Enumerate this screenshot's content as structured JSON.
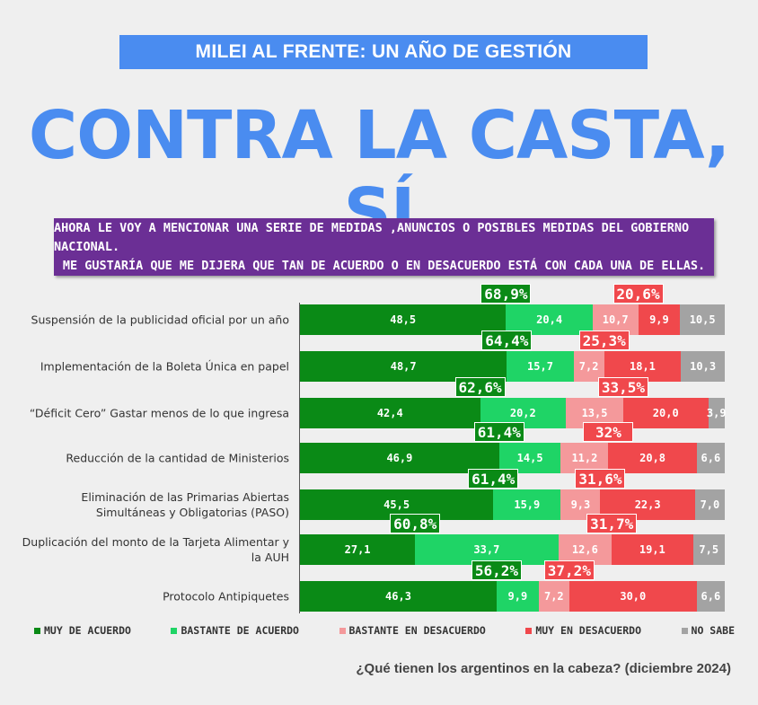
{
  "banner": "MILEI AL FRENTE: UN AÑO DE GESTIÓN",
  "title": "CONTRA LA CASTA, SÍ",
  "question": [
    "AHORA LE VOY A MENCIONAR UNA SERIE DE MEDIDAS ,ANUNCIOS  O POSIBLES MEDIDAS DEL GOBIERNO NACIONAL.",
    "ME GUSTARÍA QUE ME DIJERA QUE TAN DE ACUERDO O EN DESACUERDO ESTÁ CON CADA UNA DE ELLAS."
  ],
  "source": "¿Qué tienen los argentinos en la cabeza? (diciembre 2024)",
  "chart_data": {
    "type": "bar",
    "orientation": "horizontal",
    "stacked": true,
    "xlim": [
      0,
      100
    ],
    "legend": "bottom",
    "categories": [
      "Suspensión de la publicidad oficial por un año",
      "Implementación de la Boleta Única en papel",
      "“Déficit Cero” Gastar menos de lo que ingresa",
      "Reducción de la cantidad de Ministerios",
      "Eliminación de las Primarias Abiertas Simultáneas y Obligatorias (PASO)",
      "Duplicación del monto de la Tarjeta Alimentar y la AUH",
      "Protocolo Antipiquetes"
    ],
    "series": [
      {
        "name": "Muy de acuerdo",
        "color": "#0a8a16",
        "values": [
          "48,5",
          "48,7",
          "42,4",
          "46,9",
          "45,5",
          "27,1",
          "46,3"
        ]
      },
      {
        "name": "Bastante de acuerdo",
        "color": "#1fd466",
        "values": [
          "20,4",
          "15,7",
          "20,2",
          "14,5",
          "15,9",
          "33,7",
          "9,9"
        ]
      },
      {
        "name": "Bastante en desacuerdo",
        "color": "#f4999b",
        "values": [
          "10,7",
          "7,2",
          "13,5",
          "11,2",
          "9,3",
          "12,6",
          "7,2"
        ]
      },
      {
        "name": "Muy en desacuerdo",
        "color": "#f0484c",
        "values": [
          "9,9",
          "18,1",
          "20,0",
          "20,8",
          "22,3",
          "19,1",
          "30,0"
        ]
      },
      {
        "name": "No sabe",
        "color": "#a3a3a3",
        "values": [
          "10,5",
          "10,3",
          "3,9",
          "6,6",
          "7,0",
          "7,5",
          "6,6"
        ]
      }
    ],
    "total_agree": [
      "68,9%",
      "64,4%",
      "62,6%",
      "61,4%",
      "61,4%",
      "60,8%",
      "56,2%"
    ],
    "total_disagree": [
      "20,6%",
      "25,3%",
      "33,5%",
      "32%",
      "31,6%",
      "31,7%",
      "37,2%"
    ]
  }
}
